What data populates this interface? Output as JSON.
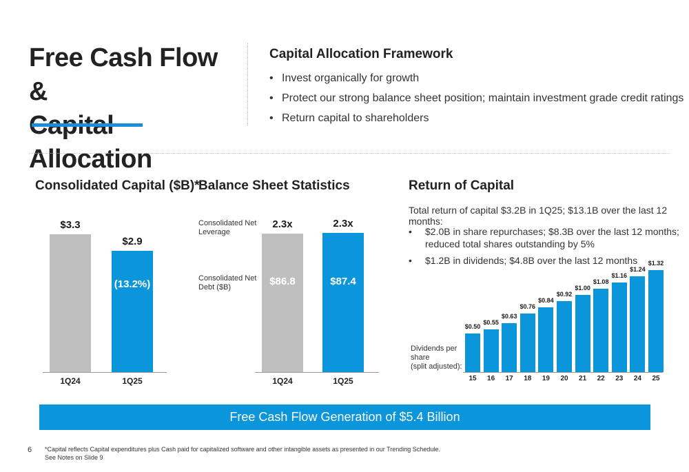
{
  "title": {
    "line1": "Free Cash Flow &",
    "line2": "Capital Allocation"
  },
  "framework": {
    "heading": "Capital Allocation Framework",
    "bullet_symbol": "•",
    "bullets": [
      "Invest organically for growth",
      "Protect our strong balance sheet position; maintain investment grade credit ratings",
      "Return capital to shareholders"
    ]
  },
  "colors": {
    "accent": "#0b96dc",
    "gray_bar": "#bfbfbf",
    "underline": "#1a8fd8"
  },
  "consolidated_capital": {
    "heading": "Consolidated Capital ($B)*",
    "chart_data": {
      "type": "bar",
      "categories": [
        "1Q24",
        "1Q25"
      ],
      "values": [
        3.3,
        2.9
      ],
      "value_labels": [
        "$3.3",
        "$2.9"
      ],
      "change_label": "(13.2%)",
      "ylim": [
        0,
        3.3
      ]
    }
  },
  "balance_sheet": {
    "heading": "Balance Sheet Statistics",
    "row_labels": {
      "leverage": "Consolidated Net Leverage",
      "debt": "Consolidated Net Debt ($B)"
    },
    "chart_data": {
      "type": "bar",
      "categories": [
        "1Q24",
        "1Q25"
      ],
      "series": [
        {
          "name": "Consolidated Net Leverage",
          "value_labels": [
            "2.3x",
            "2.3x"
          ]
        },
        {
          "name": "Consolidated Net Debt ($B)",
          "values": [
            86.8,
            87.4
          ],
          "value_labels": [
            "$86.8",
            "$87.4"
          ]
        }
      ],
      "ylim": [
        0,
        87.4
      ]
    }
  },
  "return_of_capital": {
    "heading": "Return of Capital",
    "summary": "Total return of capital $3.2B in 1Q25; $13.1B over the last 12 months:",
    "bullet_symbol": "•",
    "bullets": [
      {
        "line1": "$2.0B in share repurchases; $8.3B over the last 12 months;",
        "line2": "reduced total shares outstanding by 5%"
      },
      {
        "line1": "$1.2B in dividends; $4.8B over the last 12 months",
        "line2": ""
      }
    ],
    "dividends_label": {
      "line1": "Dividends per share",
      "line2": "(split adjusted):"
    },
    "chart_data": {
      "type": "bar",
      "categories": [
        "15",
        "16",
        "17",
        "18",
        "19",
        "20",
        "21",
        "22",
        "23",
        "24",
        "25"
      ],
      "values": [
        0.5,
        0.55,
        0.63,
        0.76,
        0.84,
        0.92,
        1.0,
        1.08,
        1.16,
        1.24,
        1.32
      ],
      "value_labels": [
        "$0.50",
        "$0.55",
        "$0.63",
        "$0.76",
        "$0.84",
        "$0.92",
        "$1.00",
        "$1.08",
        "$1.16",
        "$1.24",
        "$1.32"
      ],
      "ylim": [
        0,
        1.32
      ]
    }
  },
  "banner": "Free Cash Flow Generation of $5.4 Billion",
  "page_number": "6",
  "footnote": {
    "line1": "*Capital reflects Capital expenditures plus Cash paid for capitalized software and other intangible assets as presented in our Trending Schedule.",
    "line2": "See Notes on Slide 9"
  }
}
